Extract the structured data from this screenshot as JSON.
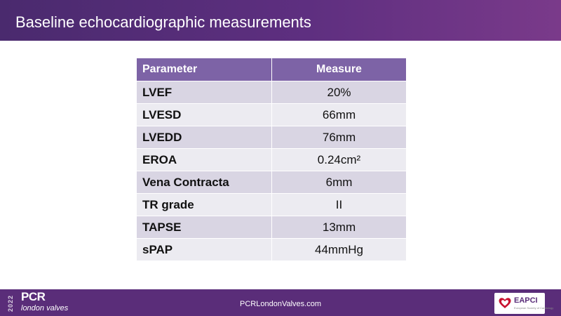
{
  "slide": {
    "title": "Baseline echocardiographic measurements"
  },
  "table": {
    "headers": [
      "Parameter",
      "Measure"
    ],
    "rows": [
      {
        "parameter": "LVEF",
        "measure": "20%"
      },
      {
        "parameter": "LVESD",
        "measure": "66mm"
      },
      {
        "parameter": "LVEDD",
        "measure": "76mm"
      },
      {
        "parameter": "EROA",
        "measure": "0.24cm²"
      },
      {
        "parameter": "Vena Contracta",
        "measure": "6mm"
      },
      {
        "parameter": "TR grade",
        "measure": "II"
      },
      {
        "parameter": "TAPSE",
        "measure": "13mm"
      },
      {
        "parameter": "sPAP",
        "measure": "44mmHg"
      }
    ]
  },
  "footer": {
    "year": "2022",
    "logo_main": "PCR",
    "logo_sub": "london valves",
    "url": "PCRLondonValves.com",
    "badge_label": "EAPCI",
    "badge_sub": "European Society of Cardiology"
  },
  "colors": {
    "header_start": "#4a2a6e",
    "header_end": "#7a3a8a",
    "table_header": "#7d63a6",
    "row_dark": "#d9d5e3",
    "row_light": "#ecebf1",
    "footer": "#5a2d79",
    "heart_red": "#c8102e"
  }
}
